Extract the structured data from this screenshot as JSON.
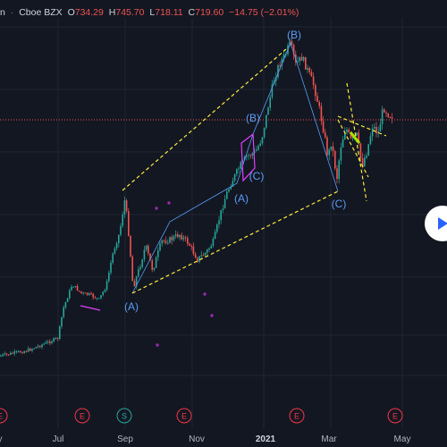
{
  "legend": {
    "name_fragment": "n",
    "exchange": "Cboe BZX",
    "open_label": "O",
    "open": "734.29",
    "high_label": "H",
    "high": "745.70",
    "low_label": "L",
    "low": "718.11",
    "close_label": "C",
    "close": "719.60",
    "change": "−14.75 (−2.01%)"
  },
  "colors": {
    "background": "#131722",
    "up": "#26a69a",
    "down": "#ef5350",
    "wave_label": "#5b9cf6",
    "trendline": "#ffeb3b",
    "pattern": "#e040fb",
    "price_line": "#ef5350"
  },
  "wave_labels": [
    "(B)",
    "(B)",
    "(C)",
    "(A)",
    "(A)",
    "(C)"
  ],
  "x_axis": {
    "ticks": [
      "y",
      "Jul",
      "Sep",
      "Nov",
      "2021",
      "Mar",
      "May"
    ]
  },
  "event_badges": [
    {
      "type": "earnings",
      "letter": "E"
    },
    {
      "type": "earnings",
      "letter": "E"
    },
    {
      "type": "split",
      "letter": "S"
    },
    {
      "type": "earnings",
      "letter": "E"
    },
    {
      "type": "earnings",
      "letter": "E"
    },
    {
      "type": "earnings",
      "letter": "E"
    }
  ],
  "chart_data": {
    "type": "candlestick",
    "title": "",
    "x_ticks": [
      "Jul",
      "Sep",
      "Nov",
      "2021",
      "Mar",
      "May"
    ],
    "last_bar": {
      "open": 734.29,
      "high": 745.7,
      "low": 718.11,
      "close": 719.6,
      "change": -14.75,
      "change_pct": -2.01
    },
    "grid": true,
    "legend_position": "top-left"
  }
}
